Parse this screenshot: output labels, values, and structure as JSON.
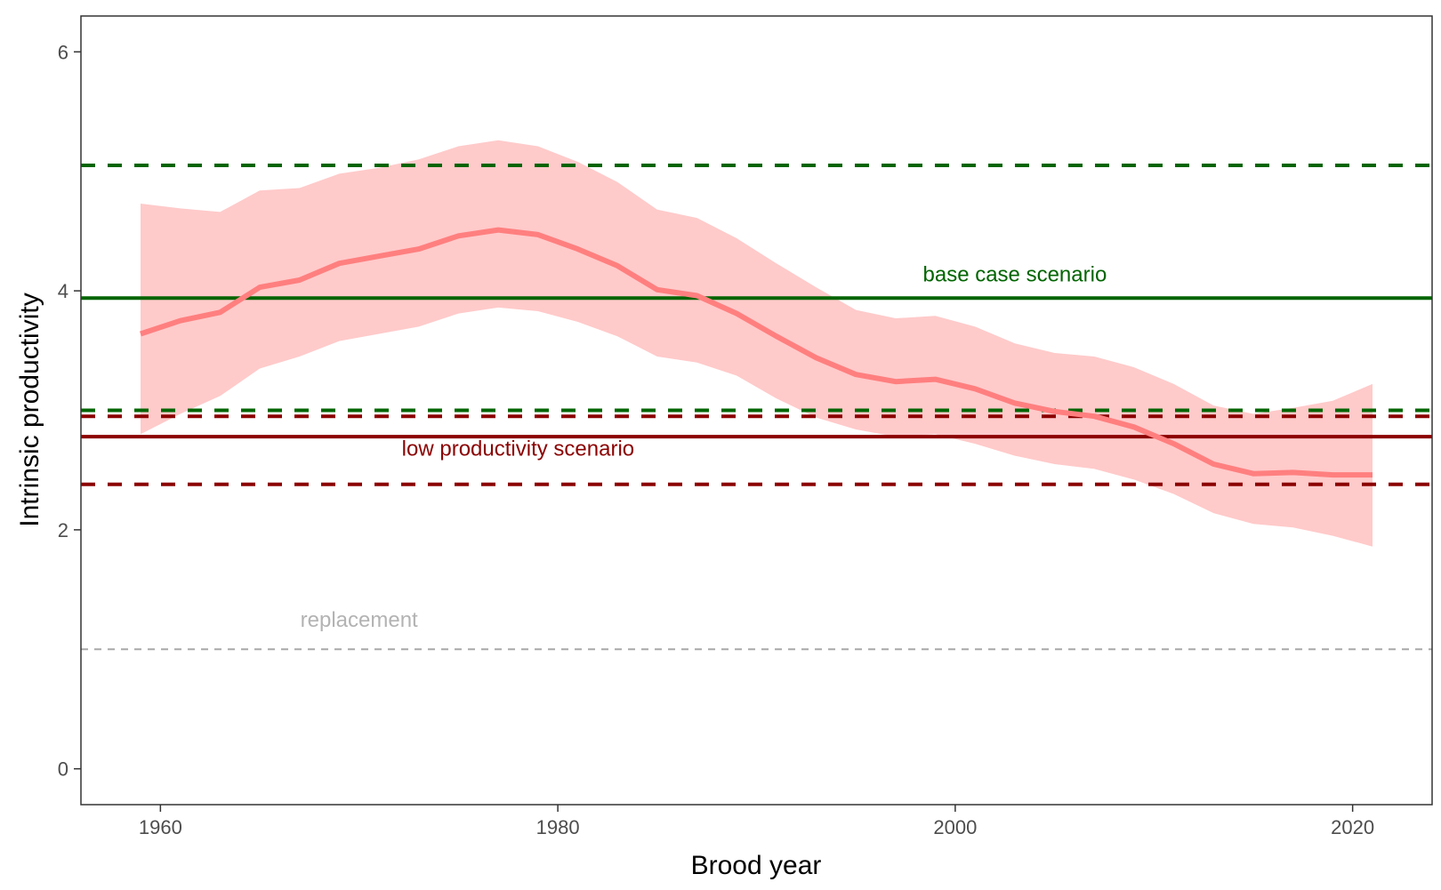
{
  "chart_data": {
    "type": "line",
    "title": "",
    "xlabel": "Brood year",
    "ylabel": "Intrinsic productivity",
    "xlim": [
      1956,
      2024
    ],
    "ylim": [
      -0.3,
      6.3
    ],
    "x_ticks": [
      1960,
      1980,
      2000,
      2020
    ],
    "y_ticks": [
      0,
      2,
      4,
      6
    ],
    "grid": false,
    "legend": "none",
    "series": [
      {
        "color": "#ff7f7f",
        "band_color": "#ffcaca",
        "x": [
          1959,
          1961,
          1963,
          1965,
          1967,
          1969,
          1971,
          1973,
          1975,
          1977,
          1979,
          1981,
          1983,
          1985,
          1987,
          1989,
          1991,
          1993,
          1995,
          1997,
          1999,
          2001,
          2003,
          2005,
          2007,
          2009,
          2011,
          2013,
          2015,
          2017,
          2019,
          2021
        ],
        "y": [
          3.64,
          3.75,
          3.82,
          4.03,
          4.09,
          4.23,
          4.29,
          4.35,
          4.46,
          4.51,
          4.47,
          4.35,
          4.21,
          4.01,
          3.96,
          3.81,
          3.62,
          3.44,
          3.3,
          3.24,
          3.26,
          3.18,
          3.06,
          2.99,
          2.95,
          2.86,
          2.72,
          2.55,
          2.47,
          2.48,
          2.46,
          2.46
        ],
        "lower": [
          2.8,
          2.97,
          3.12,
          3.35,
          3.45,
          3.58,
          3.64,
          3.7,
          3.81,
          3.86,
          3.83,
          3.74,
          3.62,
          3.45,
          3.4,
          3.29,
          3.1,
          2.94,
          2.84,
          2.78,
          2.8,
          2.72,
          2.62,
          2.55,
          2.51,
          2.42,
          2.3,
          2.14,
          2.05,
          2.02,
          1.95,
          1.86
        ],
        "upper": [
          4.73,
          4.69,
          4.66,
          4.84,
          4.86,
          4.98,
          5.03,
          5.1,
          5.21,
          5.26,
          5.21,
          5.08,
          4.91,
          4.68,
          4.61,
          4.44,
          4.23,
          4.03,
          3.84,
          3.77,
          3.79,
          3.7,
          3.56,
          3.48,
          3.45,
          3.36,
          3.22,
          3.04,
          2.97,
          3.02,
          3.08,
          3.22
        ]
      }
    ],
    "reference_lines": [
      {
        "y": 5.05,
        "color": "#006400",
        "style": "dashed",
        "width": 4
      },
      {
        "y": 3.94,
        "color": "#006400",
        "style": "solid",
        "width": 4
      },
      {
        "y": 3.0,
        "color": "#006400",
        "style": "dashed",
        "width": 4
      },
      {
        "y": 2.95,
        "color": "#8b0000",
        "style": "dashed",
        "width": 4
      },
      {
        "y": 2.78,
        "color": "#8b0000",
        "style": "solid",
        "width": 4
      },
      {
        "y": 2.38,
        "color": "#8b0000",
        "style": "dashed",
        "width": 4
      },
      {
        "y": 1.0,
        "color": "#a9a9a9",
        "style": "dashed",
        "width": 2
      }
    ],
    "annotations": [
      {
        "text": "base case scenario",
        "x": 2003,
        "y": 4.08,
        "color": "#006400"
      },
      {
        "text": "low productivity scenario",
        "x": 1978,
        "y": 2.62,
        "color": "#8b0000"
      },
      {
        "text": "replacement",
        "x": 1970,
        "y": 1.19,
        "color": "#b3b3b3"
      }
    ]
  }
}
